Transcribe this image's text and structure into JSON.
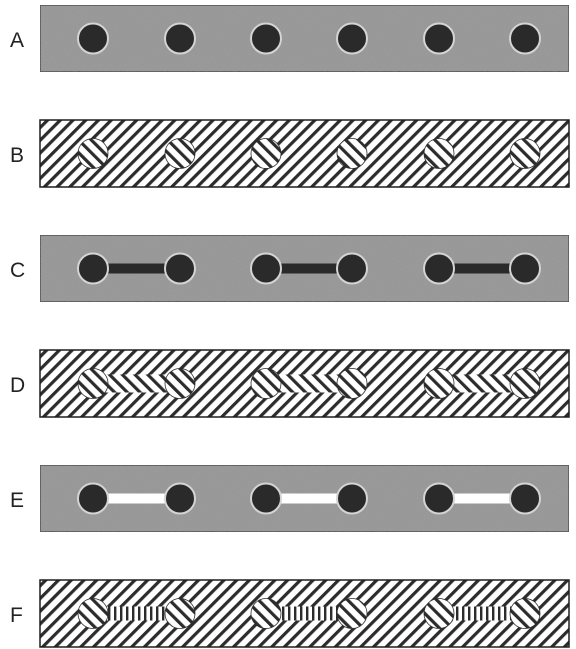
{
  "colors": {
    "gray_bar": "#8f8f8f",
    "dot": "#2a2a2a",
    "ring": "#d4d4d4",
    "hatch": "#2c2c2c",
    "border": "#1e1e1e",
    "white": "#ffffff"
  },
  "panels": [
    {
      "label": "A",
      "style": "gray",
      "elements": "dots",
      "dot_count": 6
    },
    {
      "label": "B",
      "style": "hatched",
      "elements": "dot-patches",
      "dot_count": 6
    },
    {
      "label": "C",
      "style": "gray",
      "elements": "dumbbells",
      "pair_count": 3,
      "bridge": "dark"
    },
    {
      "label": "D",
      "style": "hatched",
      "elements": "dumbbell-patches",
      "pair_count": 3,
      "bridge": "hatched"
    },
    {
      "label": "E",
      "style": "gray",
      "elements": "dumbbells",
      "pair_count": 3,
      "bridge": "white"
    },
    {
      "label": "F",
      "style": "hatched",
      "elements": "dumbbell-patches",
      "pair_count": 3,
      "bridge": "vertical-lines"
    }
  ]
}
